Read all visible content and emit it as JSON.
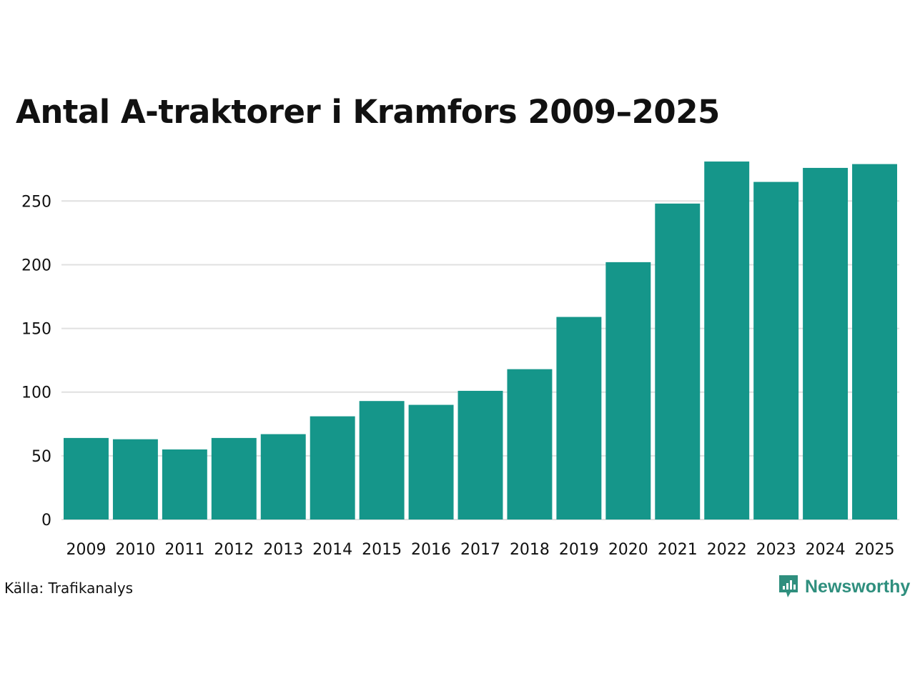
{
  "chart_data": {
    "type": "bar",
    "title": "Antal A-traktorer i Kramfors 2009–2025",
    "xlabel": "",
    "ylabel": "",
    "categories": [
      "2009",
      "2010",
      "2011",
      "2012",
      "2013",
      "2014",
      "2015",
      "2016",
      "2017",
      "2018",
      "2019",
      "2020",
      "2021",
      "2022",
      "2023",
      "2024",
      "2025"
    ],
    "values": [
      64,
      63,
      55,
      64,
      67,
      81,
      93,
      90,
      101,
      118,
      159,
      202,
      248,
      281,
      265,
      276,
      279
    ],
    "ylim": [
      0,
      290
    ],
    "yticks": [
      0,
      50,
      100,
      150,
      200,
      250
    ],
    "grid": true,
    "bar_color": "#15968a",
    "grid_color": "#e0e0e0"
  },
  "footer": {
    "source": "Källa: Trafikanalys",
    "brand": "Newsworthy",
    "brand_color": "#2f8f7e"
  }
}
